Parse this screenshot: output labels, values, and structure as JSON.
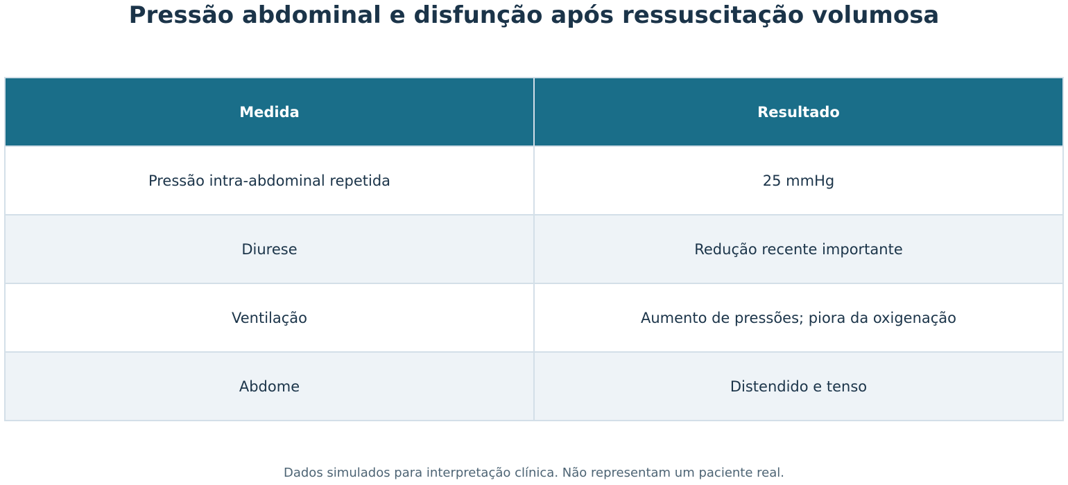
{
  "header": {
    "title": "Pressão abdominal e disfunção após ressuscitação volumosa"
  },
  "table": {
    "columns": [
      "Medida",
      "Resultado"
    ],
    "rows": [
      [
        "Pressão intra-abdominal repetida",
        "25 mmHg"
      ],
      [
        "Diurese",
        "Redução recente importante"
      ],
      [
        "Ventilação",
        "Aumento de pressões; piora da oxigenação"
      ],
      [
        "Abdome",
        "Distendido e tenso"
      ]
    ]
  },
  "footer": {
    "note": "Dados simulados para interpretação clínica. Não representam um paciente real."
  }
}
